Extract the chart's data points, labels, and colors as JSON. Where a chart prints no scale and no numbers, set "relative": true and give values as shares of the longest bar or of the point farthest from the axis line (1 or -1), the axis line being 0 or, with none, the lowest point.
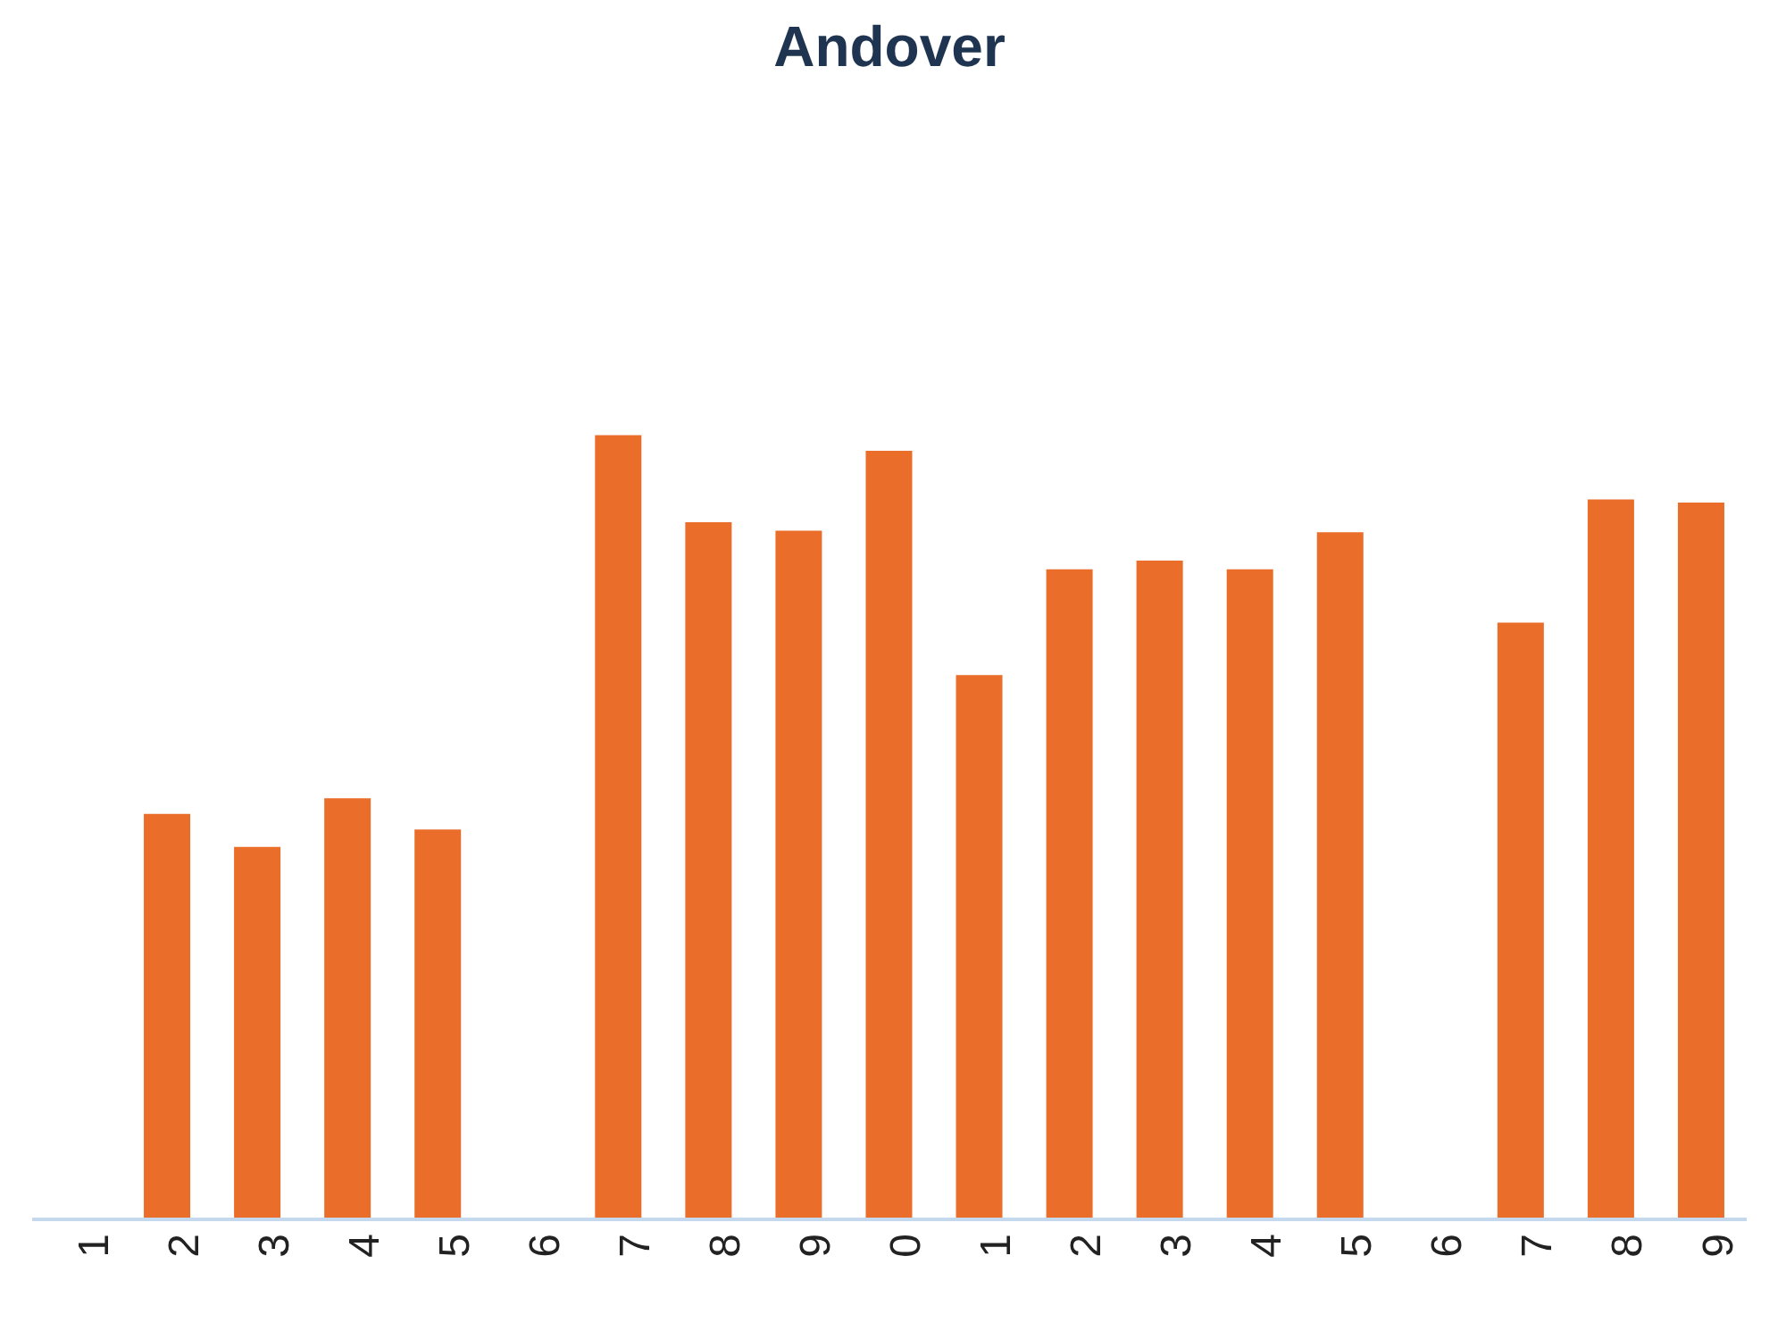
{
  "chart_data": {
    "type": "bar",
    "title": "Andover",
    "relative": true,
    "color": "#ea6d2a",
    "categories": [
      "1",
      "2",
      "3",
      "4",
      "5",
      "6",
      "7",
      "8",
      "9",
      "0",
      "1",
      "2",
      "3",
      "4",
      "5",
      "6",
      "7",
      "8",
      "9"
    ],
    "values": [
      null,
      0.517,
      0.475,
      0.537,
      0.497,
      null,
      1,
      0.889,
      0.878,
      0.98,
      0.694,
      0.829,
      0.84,
      0.829,
      0.876,
      null,
      0.761,
      0.918,
      0.914
    ]
  }
}
